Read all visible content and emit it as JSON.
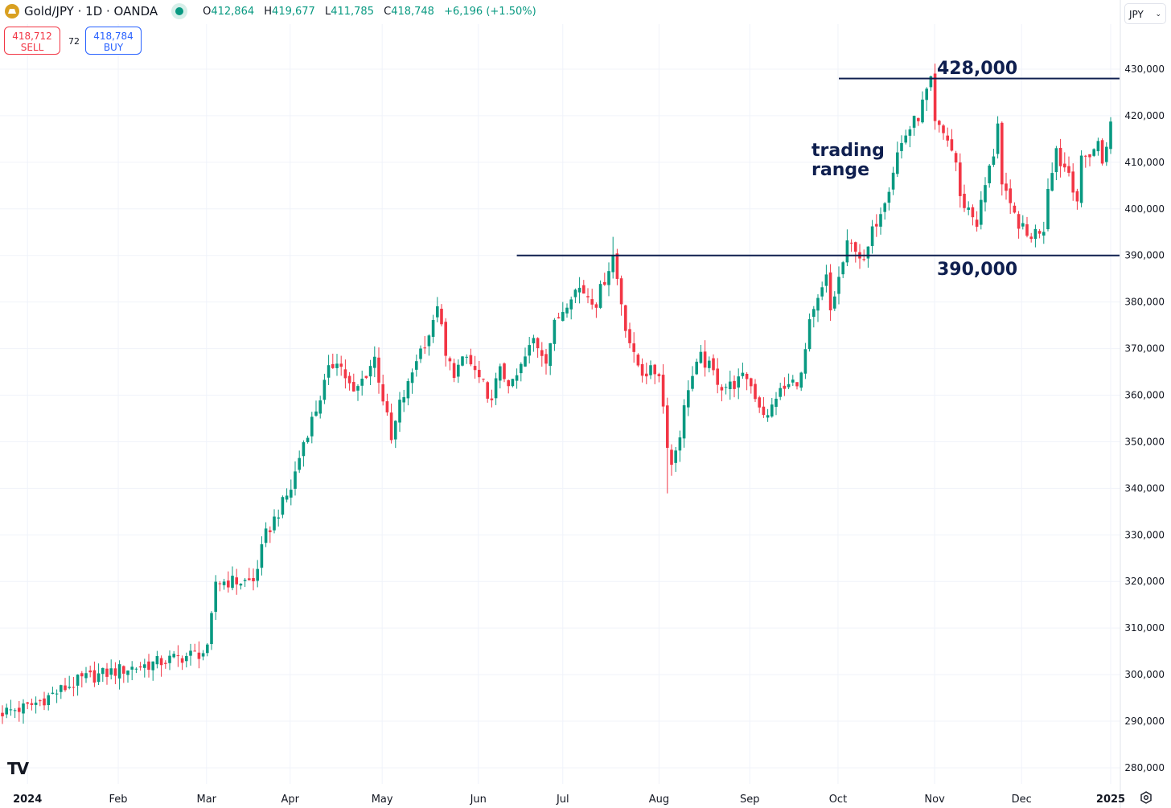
{
  "header": {
    "symbol": "Gold/JPY · 1D · OANDA",
    "open_label": "O",
    "open": "412,864",
    "high_label": "H",
    "high": "419,677",
    "low_label": "L",
    "low": "411,785",
    "close_label": "C",
    "close": "418,748",
    "change": "+6,196 (+1.50%)"
  },
  "trade": {
    "sell_price": "418,712",
    "sell_label": "SELL",
    "spread": "72",
    "buy_price": "418,784",
    "buy_label": "BUY"
  },
  "currency": "JPY",
  "colors": {
    "up": "#089981",
    "down": "#f23645",
    "annotation": "#0f1f4f",
    "grid": "#f0f3fa"
  },
  "chart_data": {
    "type": "candlestick",
    "title": "Gold/JPY · 1D · OANDA",
    "ylim": [
      275000,
      432000
    ],
    "y_ticks": [
      "430,000",
      "420,000",
      "410,000",
      "400,000",
      "390,000",
      "380,000",
      "370,000",
      "360,000",
      "350,000",
      "340,000",
      "330,000",
      "320,000",
      "310,000",
      "300,000",
      "290,000",
      "280,000"
    ],
    "y_tick_values": [
      430000,
      420000,
      410000,
      400000,
      390000,
      380000,
      370000,
      360000,
      350000,
      340000,
      330000,
      320000,
      310000,
      300000,
      290000,
      280000
    ],
    "x_ticks": [
      {
        "label": "2024",
        "day": 6,
        "bold": true
      },
      {
        "label": "Feb",
        "day": 27.7
      },
      {
        "label": "Mar",
        "day": 48.8
      },
      {
        "label": "Apr",
        "day": 68.8
      },
      {
        "label": "May",
        "day": 90.8
      },
      {
        "label": "Jun",
        "day": 113.8
      },
      {
        "label": "Jul",
        "day": 134
      },
      {
        "label": "Aug",
        "day": 157
      },
      {
        "label": "Sep",
        "day": 178.7
      },
      {
        "label": "Oct",
        "day": 199.8
      },
      {
        "label": "Nov",
        "day": 222.9
      },
      {
        "label": "Dec",
        "day": 243.7
      },
      {
        "label": "2025",
        "day": 265,
        "bold": true
      }
    ],
    "close_anchors_thousands": [
      [
        0,
        292
      ],
      [
        6,
        293
      ],
      [
        19,
        299
      ],
      [
        28,
        301
      ],
      [
        34,
        302
      ],
      [
        49,
        305
      ],
      [
        50,
        312
      ],
      [
        51,
        320
      ],
      [
        60,
        320
      ],
      [
        63,
        330
      ],
      [
        66,
        335
      ],
      [
        69,
        340
      ],
      [
        72,
        350
      ],
      [
        75,
        357
      ],
      [
        78,
        365
      ],
      [
        80,
        368
      ],
      [
        84,
        360
      ],
      [
        89,
        368
      ],
      [
        92,
        355
      ],
      [
        93,
        350
      ],
      [
        95,
        358
      ],
      [
        97,
        362
      ],
      [
        99,
        368
      ],
      [
        103,
        375
      ],
      [
        104,
        380
      ],
      [
        106,
        368
      ],
      [
        108,
        365
      ],
      [
        111,
        368
      ],
      [
        115,
        362
      ],
      [
        116,
        358
      ],
      [
        119,
        365
      ],
      [
        122,
        362
      ],
      [
        127,
        372
      ],
      [
        130,
        368
      ],
      [
        132,
        375
      ],
      [
        136,
        382
      ],
      [
        138,
        383
      ],
      [
        142,
        380
      ],
      [
        144,
        385
      ],
      [
        146,
        390
      ],
      [
        147,
        385
      ],
      [
        149,
        375
      ],
      [
        151,
        368
      ],
      [
        153,
        365
      ],
      [
        157,
        365
      ],
      [
        159,
        350
      ],
      [
        160,
        345
      ],
      [
        162,
        352
      ],
      [
        164,
        362
      ],
      [
        167,
        368
      ],
      [
        169,
        366
      ],
      [
        172,
        362
      ],
      [
        174,
        362
      ],
      [
        178,
        364
      ],
      [
        181,
        358
      ],
      [
        183,
        355
      ],
      [
        185,
        360
      ],
      [
        188,
        362
      ],
      [
        191,
        364
      ],
      [
        193,
        375
      ],
      [
        195,
        380
      ],
      [
        197,
        385
      ],
      [
        198,
        378
      ],
      [
        200,
        385
      ],
      [
        202,
        392
      ],
      [
        204,
        392
      ],
      [
        206,
        388
      ],
      [
        208,
        395
      ],
      [
        210,
        400
      ],
      [
        212,
        405
      ],
      [
        214,
        412
      ],
      [
        216,
        416
      ],
      [
        219,
        420
      ],
      [
        221,
        425
      ],
      [
        222,
        427
      ],
      [
        223,
        418
      ],
      [
        226,
        415
      ],
      [
        228,
        410
      ],
      [
        229,
        402
      ],
      [
        231,
        400
      ],
      [
        233,
        397
      ],
      [
        235,
        405
      ],
      [
        237,
        412
      ],
      [
        238,
        419
      ],
      [
        239,
        405
      ],
      [
        241,
        400
      ],
      [
        243,
        397
      ],
      [
        245,
        394
      ],
      [
        247,
        395
      ],
      [
        249,
        396
      ],
      [
        250,
        405
      ],
      [
        252,
        413
      ],
      [
        253,
        410
      ],
      [
        255,
        408
      ],
      [
        257,
        402
      ],
      [
        258,
        410
      ],
      [
        260,
        412
      ],
      [
        262,
        414
      ],
      [
        263,
        410
      ],
      [
        265,
        418.748
      ]
    ],
    "last_candle": {
      "open": 412864,
      "high": 419677,
      "low": 411785,
      "close": 418748
    },
    "levels": [
      {
        "value": 428000,
        "label": "428,000",
        "from_day": 200
      },
      {
        "value": 390000,
        "label": "390,000",
        "from_day": 123
      }
    ],
    "annotation": {
      "line1": "trading",
      "line2": "range"
    }
  }
}
